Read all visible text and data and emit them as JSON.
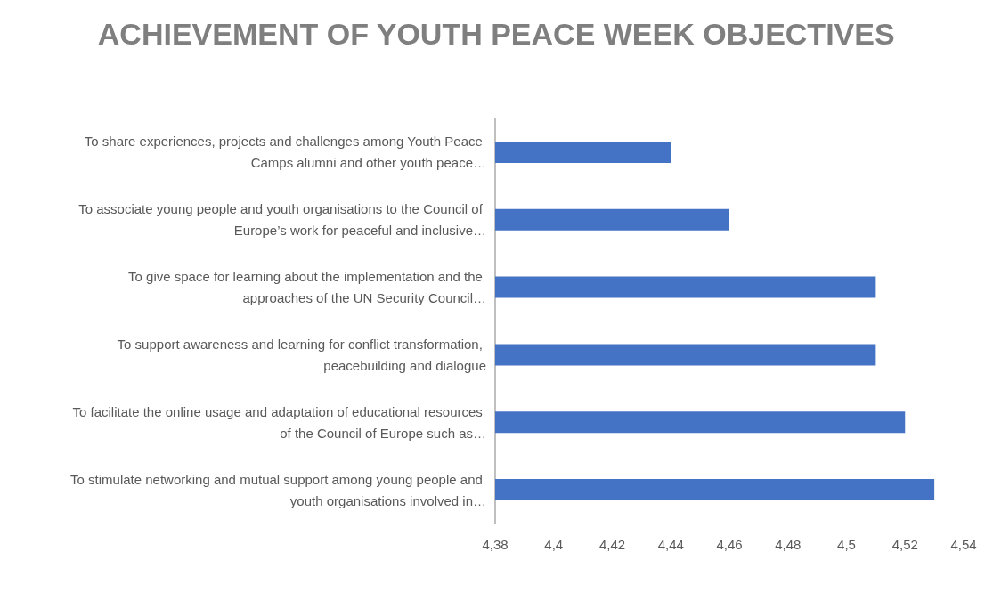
{
  "chart_data": {
    "type": "bar",
    "orientation": "horizontal",
    "title": "ACHIEVEMENT OF YOUTH PEACE WEEK OBJECTIVES",
    "categories": [
      "To share experiences, projects and challenges among Youth Peace Camps alumni and other youth peace…",
      "To associate young people and youth organisations to the Council of Europe’s work for peaceful and inclusive…",
      "To give space for learning about the implementation and the approaches of the UN Security Council…",
      "To support awareness and learning for conflict transformation, peacebuilding and dialogue",
      "To facilitate the online usage and adaptation of educational resources of the Council of Europe such as…",
      "To stimulate networking and mutual support among young people and youth organisations involved in…"
    ],
    "values": [
      4.44,
      4.46,
      4.51,
      4.51,
      4.52,
      4.53
    ],
    "color": "#4472c4",
    "xlim": [
      4.38,
      4.54
    ],
    "xticks": [
      {
        "value": 4.38,
        "label": "4,38"
      },
      {
        "value": 4.4,
        "label": "4,4"
      },
      {
        "value": 4.42,
        "label": "4,42"
      },
      {
        "value": 4.44,
        "label": "4,44"
      },
      {
        "value": 4.46,
        "label": "4,46"
      },
      {
        "value": 4.48,
        "label": "4,48"
      },
      {
        "value": 4.5,
        "label": "4,5"
      },
      {
        "value": 4.52,
        "label": "4,52"
      },
      {
        "value": 4.54,
        "label": "4,54"
      }
    ],
    "grid": false
  }
}
